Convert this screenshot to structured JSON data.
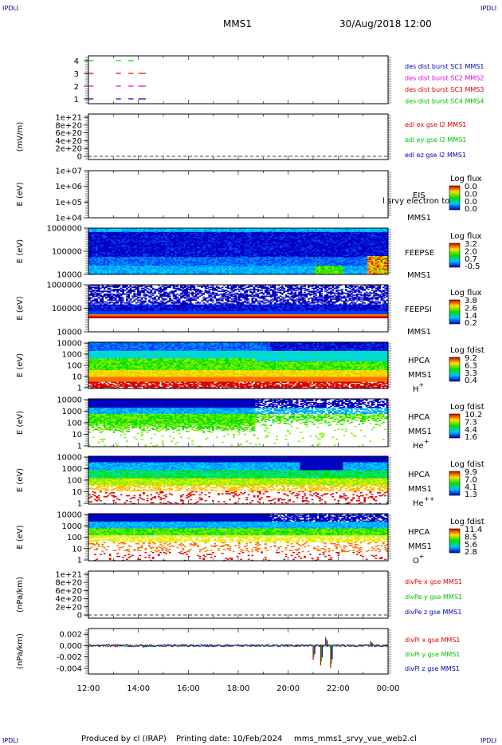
{
  "header": {
    "corner_left": "IPDLI",
    "corner_right": "IPDLI",
    "spacecraft": "MMS1",
    "datetime": "30/Aug/2018 12:00"
  },
  "footer": {
    "produced_by": "Produced by cl (IRAP)",
    "printing_date": "Printing date: 10/Feb/2024",
    "filename": "mms_mms1_srvy_vue_web2.cl",
    "corner_left": "IPDLI",
    "corner_right": "IPDLI"
  },
  "time_axis": {
    "tick_labels": [
      "12:00",
      "14:00",
      "16:00",
      "18:00",
      "20:00",
      "22:00",
      "00:00"
    ]
  },
  "colors": {
    "red": "#e00000",
    "green": "#00c000",
    "blue": "#0000c0",
    "magenta": "#e000e0",
    "navy": "#0000a0"
  },
  "chart_data": [
    {
      "type": "line",
      "panel": "burst",
      "ylabel": "",
      "ylim": [
        0.5,
        4.5
      ],
      "ytick_labels": [
        "1",
        "2",
        "3",
        "4"
      ],
      "legend": [
        {
          "label": "des dist burst SC1 MMS1",
          "color": "#0000c0"
        },
        {
          "label": "des dist burst SC2 MMS2",
          "color": "#e000e0"
        },
        {
          "label": "des dist burst SC3 MMS3",
          "color": "#e00000"
        },
        {
          "label": "des dist burst SC4 MMS4",
          "color": "#00c000"
        }
      ],
      "intervals": {
        "4": [
          [
            12.0,
            12.2
          ],
          [
            13.1,
            13.3
          ],
          [
            13.6,
            13.8
          ]
        ],
        "3": [
          [
            12.0,
            12.2
          ],
          [
            13.1,
            13.3
          ],
          [
            13.6,
            13.8
          ],
          [
            14.0,
            14.3
          ]
        ],
        "2": [
          [
            12.0,
            12.2
          ],
          [
            13.1,
            13.3
          ],
          [
            13.6,
            13.8
          ],
          [
            14.0,
            14.3
          ]
        ],
        "1": [
          [
            12.0,
            12.2
          ],
          [
            13.1,
            13.3
          ],
          [
            13.6,
            13.8
          ],
          [
            14.0,
            14.3
          ]
        ]
      }
    },
    {
      "type": "line",
      "panel": "edi",
      "ylabel": "(mV/m)",
      "ytick_labels": [
        "1e+21",
        "8e+20",
        "6e+20",
        "4e+20",
        "2e+20",
        "0"
      ],
      "legend": [
        {
          "label": "edi ex gse l2 MMS1",
          "color": "#e00000"
        },
        {
          "label": "edi ey gse l2 MMS1",
          "color": "#00c000"
        },
        {
          "label": "edi ez gse l2 MMS1",
          "color": "#0000c0"
        }
      ],
      "zero_line": true
    },
    {
      "type": "heatmap",
      "panel": "eis",
      "ylabel": "E (eV)",
      "ytick_labels": [
        "1e+07",
        "1e+06",
        "1e+05",
        "1e+04"
      ],
      "instrument": [
        "EIS",
        "MMS1"
      ],
      "overlay_text": "l srvy electron to",
      "colorbar": {
        "title": "Log flux",
        "labels": [
          "0.0",
          "0.0",
          "0.0",
          "0.0"
        ]
      }
    },
    {
      "type": "heatmap",
      "panel": "feeps_e",
      "ylabel": "E (eV)",
      "ytick_labels": [
        "1000000",
        "100000",
        "10000"
      ],
      "instrument": [
        "FEEPSE",
        "MMS1"
      ],
      "colorbar": {
        "title": "Log flux",
        "labels": [
          "3.2",
          "2.0",
          "0.7",
          "-0.5"
        ]
      }
    },
    {
      "type": "heatmap",
      "panel": "feeps_i",
      "ylabel": "E (eV)",
      "ytick_labels": [
        "1000000",
        "100000",
        "10000"
      ],
      "instrument": [
        "FEEPSI",
        "MMS1"
      ],
      "colorbar": {
        "title": "Log flux",
        "labels": [
          "3.8",
          "2.6",
          "1.4",
          "0.2"
        ]
      }
    },
    {
      "type": "heatmap",
      "panel": "hpca_h",
      "ylabel": "E (eV)",
      "ytick_labels": [
        "10000",
        "1000",
        "100",
        "10",
        "1"
      ],
      "instrument": [
        "HPCA",
        "MMS1"
      ],
      "species": "H",
      "charge": "+",
      "colorbar": {
        "title": "Log fdist",
        "labels": [
          "9.2",
          "6.3",
          "3.3",
          "0.4"
        ]
      }
    },
    {
      "type": "heatmap",
      "panel": "hpca_he",
      "ylabel": "E (eV)",
      "ytick_labels": [
        "10000",
        "1000",
        "100",
        "10",
        "1"
      ],
      "instrument": [
        "HPCA",
        "MMS1"
      ],
      "species": "He",
      "charge": "+",
      "colorbar": {
        "title": "Log fdist",
        "labels": [
          "10.2",
          "7.3",
          "4.4",
          "1.6"
        ]
      }
    },
    {
      "type": "heatmap",
      "panel": "hpca_he2",
      "ylabel": "E (eV)",
      "ytick_labels": [
        "10000",
        "1000",
        "100",
        "10",
        "1"
      ],
      "instrument": [
        "HPCA",
        "MMS1"
      ],
      "species": "He",
      "charge": "++",
      "colorbar": {
        "title": "Log fdist",
        "labels": [
          "9.9",
          "7.0",
          "4.1",
          "1.3"
        ]
      }
    },
    {
      "type": "heatmap",
      "panel": "hpca_o",
      "ylabel": "E (eV)",
      "ytick_labels": [
        "10000",
        "1000",
        "100",
        "10",
        "1"
      ],
      "instrument": [
        "HPCA",
        "MMS1"
      ],
      "species": "O",
      "charge": "+",
      "colorbar": {
        "title": "Log fdist",
        "labels": [
          "11.4",
          "8.5",
          "5.6",
          "2.8"
        ]
      }
    },
    {
      "type": "line",
      "panel": "divpe",
      "ylabel": "(nPa/km)",
      "ytick_labels": [
        "1e+21",
        "8e+20",
        "6e+20",
        "4e+20",
        "2e+20",
        "0"
      ],
      "legend": [
        {
          "label": "divPe x gse MMS1",
          "color": "#e00000"
        },
        {
          "label": "divPe y gse MMS1",
          "color": "#00c000"
        },
        {
          "label": "divPe z gse MMS1",
          "color": "#0000c0"
        }
      ],
      "zero_line": true
    },
    {
      "type": "line",
      "panel": "divpi",
      "ylabel": "(nPa/km)",
      "ylim": [
        -0.005,
        0.003
      ],
      "ytick_labels": [
        "0.002",
        "0.000",
        "-0.002",
        "-0.004"
      ],
      "legend": [
        {
          "label": "divPi x gse MMS1",
          "color": "#e00000"
        },
        {
          "label": "divPi y gse MMS1",
          "color": "#00c000"
        },
        {
          "label": "divPi z gse MMS1",
          "color": "#0000c0"
        }
      ],
      "spikes": [
        {
          "t": 13.1,
          "value": -0.0003
        },
        {
          "t": 14.2,
          "value": -0.0004
        },
        {
          "t": 21.0,
          "value": -0.0025
        },
        {
          "t": 21.3,
          "value": -0.0035
        },
        {
          "t": 21.5,
          "value": 0.0015
        },
        {
          "t": 21.7,
          "value": -0.004
        },
        {
          "t": 23.3,
          "value": 0.0008
        }
      ]
    }
  ]
}
